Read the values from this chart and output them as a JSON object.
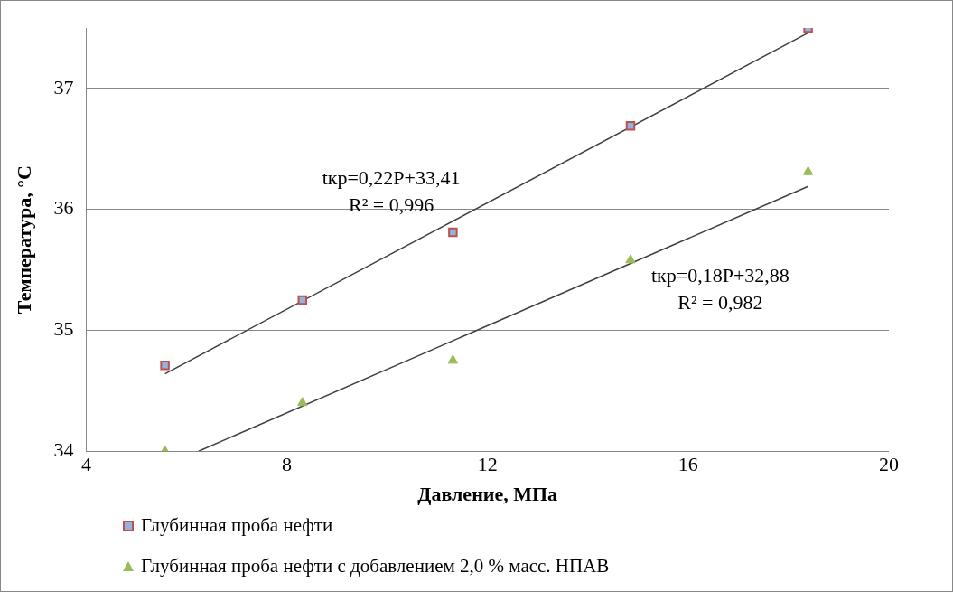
{
  "chart_data": {
    "type": "scatter",
    "xlabel": "Давление, МПа",
    "ylabel": "Температура, °С",
    "xlim": [
      4,
      20
    ],
    "xticks": [
      4,
      8,
      12,
      16,
      20
    ],
    "ylim": [
      34,
      37.5
    ],
    "yticks": [
      34,
      35,
      36,
      37
    ],
    "grid": "y",
    "legend": "bottom left",
    "series": [
      {
        "name": "Глубинная проба нефти",
        "marker": "square",
        "color": "#c0504d",
        "x": [
          5.57,
          8.31,
          11.31,
          14.85,
          18.39
        ],
        "values": [
          34.71,
          35.25,
          35.81,
          36.69,
          37.5
        ]
      },
      {
        "name": "Глубинная проба нефти с добавлением 2,0 % масс. НПАВ",
        "marker": "triangle",
        "color": "#9bbb59",
        "x": [
          5.57,
          8.31,
          11.31,
          14.85,
          18.39
        ],
        "values": [
          34.0,
          34.4,
          34.75,
          35.58,
          36.31
        ]
      },
      {
        "type": "line",
        "marker": "none",
        "color": "#404040",
        "x": [
          5.57,
          18.39
        ],
        "values": [
          34.64,
          37.46
        ]
      },
      {
        "type": "line",
        "marker": "none",
        "color": "#404040",
        "x": [
          6.24,
          18.39
        ],
        "values": [
          34.0,
          36.19
        ]
      }
    ],
    "annotations": [
      "tкр=0,22P+33,41\nR² = 0,996",
      "tкр=0,18P+32,88\nR² = 0,982"
    ]
  }
}
